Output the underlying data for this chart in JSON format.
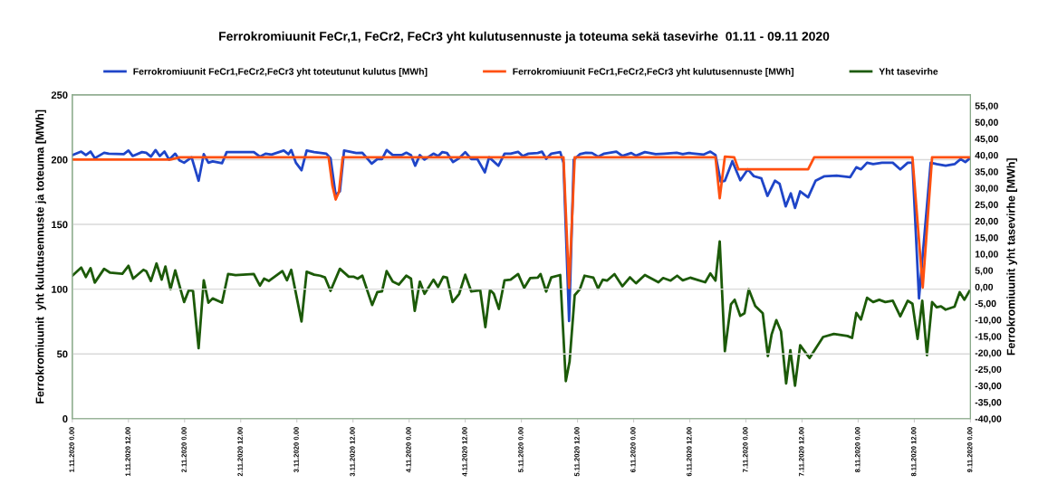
{
  "chart_data": {
    "type": "line",
    "title": "Ferrokromiuunit FeCr,1, FeCr2, FeCr3 yht kulutusennuste ja toteuma sekä tasevirhe  01.11 - 09.11 2020",
    "ylabel": "Ferrokromiuunit  yht kulutusennuste ja toteuma [MWh]",
    "y2label": "Ferrokromiuunit yht tasevirhe [MWh]",
    "xlim": [
      "2020-11-01T00:00",
      "2020-11-09T00:00"
    ],
    "xticks": [
      {
        "value": "2020-11-01T00:00",
        "label": "1.11.2020 0.00"
      },
      {
        "value": "2020-11-01T12:00",
        "label": "1.11.2020 12.00"
      },
      {
        "value": "2020-11-02T00:00",
        "label": "2.11.2020 0.00"
      },
      {
        "value": "2020-11-02T12:00",
        "label": "2.11.2020 12.00"
      },
      {
        "value": "2020-11-03T00:00",
        "label": "3.11.2020 0.00"
      },
      {
        "value": "2020-11-03T12:00",
        "label": "3.11.2020 12.00"
      },
      {
        "value": "2020-11-04T00:00",
        "label": "4.11.2020 0.00"
      },
      {
        "value": "2020-11-04T12:00",
        "label": "4.11.2020 12.00"
      },
      {
        "value": "2020-11-05T00:00",
        "label": "5.11.2020 0.00"
      },
      {
        "value": "2020-11-05T12:00",
        "label": "5.11.2020 12.00"
      },
      {
        "value": "2020-11-06T00:00",
        "label": "6.11.2020 0.00"
      },
      {
        "value": "2020-11-06T12:00",
        "label": "6.11.2020 12.00"
      },
      {
        "value": "2020-11-07T00:00",
        "label": "7.11.2020 0.00"
      },
      {
        "value": "2020-11-07T12:00",
        "label": "7.11.2020 12.00"
      },
      {
        "value": "2020-11-08T00:00",
        "label": "8.11.2020 0.00"
      },
      {
        "value": "2020-11-08T12:00",
        "label": "8.11.2020 12.00"
      },
      {
        "value": "2020-11-09T00:00",
        "label": "9.11.2020 0.00"
      }
    ],
    "ylim": [
      0,
      250
    ],
    "yticks": [
      0,
      50,
      100,
      150,
      200,
      250
    ],
    "y2lim": [
      -40,
      58.3
    ],
    "y2ticks": [
      {
        "value": -40,
        "label": "-40,00"
      },
      {
        "value": -35,
        "label": "-35,00"
      },
      {
        "value": -30,
        "label": "-30,00"
      },
      {
        "value": -25,
        "label": "-25,00"
      },
      {
        "value": -20,
        "label": "-20,00"
      },
      {
        "value": -15,
        "label": "-15,00"
      },
      {
        "value": -10,
        "label": "-10,00"
      },
      {
        "value": -5,
        "label": "-5,00"
      },
      {
        "value": 0,
        "label": "0,00"
      },
      {
        "value": 5,
        "label": "5,00"
      },
      {
        "value": 10,
        "label": "10,00"
      },
      {
        "value": 15,
        "label": "15,00"
      },
      {
        "value": 20,
        "label": "20,00"
      },
      {
        "value": 25,
        "label": "25,00"
      },
      {
        "value": 30,
        "label": "30,00"
      },
      {
        "value": 35,
        "label": "35,00"
      },
      {
        "value": 40,
        "label": "40,00"
      },
      {
        "value": 45,
        "label": "45,00"
      },
      {
        "value": 50,
        "label": "50,00"
      },
      {
        "value": 55,
        "label": "55,00"
      }
    ],
    "grid": "y",
    "legend": "top",
    "marker": "none",
    "line_style": "solid",
    "series": [
      {
        "name": "Ferrokromiuunit FeCr1,FeCr2,FeCr3 yht toteutunut kulutus [MWh]",
        "color": "#1f45c8",
        "x": [
          "2020-11-01T00:00",
          "2020-11-01T01:54",
          "2020-11-01T02:54",
          "2020-11-01T03:54",
          "2020-11-01T04:48",
          "2020-11-01T06:48",
          "2020-11-01T07:48",
          "2020-11-01T11:00",
          "2020-11-01T12:00",
          "2020-11-01T12:54",
          "2020-11-01T14:54",
          "2020-11-01T15:48",
          "2020-11-01T16:48",
          "2020-11-01T17:48",
          "2020-11-01T18:42",
          "2020-11-01T19:42",
          "2020-11-01T20:42",
          "2020-11-01T22:00",
          "2020-11-01T22:54",
          "2020-11-01T23:54",
          "2020-11-02T01:30",
          "2020-11-02T03:00",
          "2020-11-02T04:06",
          "2020-11-02T05:06",
          "2020-11-02T06:00",
          "2020-11-02T08:00",
          "2020-11-02T09:00",
          "2020-11-02T10:54",
          "2020-11-02T14:48",
          "2020-11-02T16:06",
          "2020-11-02T17:18",
          "2020-11-02T18:36",
          "2020-11-02T21:12",
          "2020-11-02T22:12",
          "2020-11-02T22:48",
          "2020-11-02T23:48",
          "2020-11-03T01:00",
          "2020-11-03T02:06",
          "2020-11-03T03:42",
          "2020-11-03T06:18",
          "2020-11-03T07:12",
          "2020-11-03T08:18",
          "2020-11-03T09:12",
          "2020-11-03T10:06",
          "2020-11-03T12:42",
          "2020-11-03T14:00",
          "2020-11-03T16:00",
          "2020-11-03T17:12",
          "2020-11-03T18:12",
          "2020-11-03T19:12",
          "2020-11-03T20:30",
          "2020-11-03T22:24",
          "2020-11-03T23:24",
          "2020-11-04T00:24",
          "2020-11-04T01:18",
          "2020-11-04T02:18",
          "2020-11-04T03:18",
          "2020-11-04T05:12",
          "2020-11-04T06:12",
          "2020-11-04T07:06",
          "2020-11-04T08:06",
          "2020-11-04T09:24",
          "2020-11-04T10:42",
          "2020-11-04T12:00",
          "2020-11-04T13:18",
          "2020-11-04T14:36",
          "2020-11-04T16:12",
          "2020-11-04T17:06",
          "2020-11-04T19:06",
          "2020-11-04T20:24",
          "2020-11-04T21:42",
          "2020-11-04T23:18",
          "2020-11-05T00:18",
          "2020-11-05T01:30",
          "2020-11-05T03:30",
          "2020-11-05T04:24",
          "2020-11-05T05:18",
          "2020-11-05T06:24",
          "2020-11-05T08:18",
          "2020-11-05T09:00",
          "2020-11-05T10:12",
          "2020-11-05T11:12",
          "2020-11-05T12:30",
          "2020-11-05T13:48",
          "2020-11-05T15:06",
          "2020-11-05T16:24",
          "2020-11-05T17:42",
          "2020-11-05T20:18",
          "2020-11-05T21:36",
          "2020-11-05T23:30",
          "2020-11-06T00:30",
          "2020-11-06T02:24",
          "2020-11-06T04:42",
          "2020-11-06T06:36",
          "2020-11-06T09:12",
          "2020-11-06T10:30",
          "2020-11-06T11:48",
          "2020-11-06T15:00",
          "2020-11-06T16:24",
          "2020-11-06T17:30",
          "2020-11-06T18:36",
          "2020-11-06T19:30",
          "2020-11-06T21:06",
          "2020-11-06T22:48",
          "2020-11-07T00:24",
          "2020-11-07T01:42",
          "2020-11-07T03:18",
          "2020-11-07T04:36",
          "2020-11-07T06:12",
          "2020-11-07T07:12",
          "2020-11-07T08:30",
          "2020-11-07T09:36",
          "2020-11-07T10:30",
          "2020-11-07T11:36",
          "2020-11-07T13:18",
          "2020-11-07T14:54",
          "2020-11-07T16:48",
          "2020-11-07T19:24",
          "2020-11-07T22:18",
          "2020-11-07T23:36",
          "2020-11-08T00:36",
          "2020-11-08T01:54",
          "2020-11-08T03:12",
          "2020-11-08T05:06",
          "2020-11-08T07:24",
          "2020-11-08T09:00",
          "2020-11-08T10:36",
          "2020-11-08T11:36",
          "2020-11-08T13:00",
          "2020-11-08T15:30",
          "2020-11-08T16:48",
          "2020-11-08T18:42",
          "2020-11-08T20:36",
          "2020-11-08T21:54",
          "2020-11-08T22:54",
          "2020-11-08T23:54"
        ],
        "values": [
          203.5,
          206.2,
          203.5,
          206.2,
          201.1,
          205.3,
          204.6,
          204.2,
          207.0,
          202.8,
          205.8,
          205.3,
          202.3,
          207.4,
          202.8,
          206.2,
          200.0,
          204.6,
          199.5,
          197.6,
          201.8,
          183.7,
          204.2,
          197.6,
          198.6,
          197.2,
          205.8,
          205.8,
          205.8,
          202.3,
          204.6,
          203.9,
          207.0,
          204.2,
          207.4,
          197.6,
          191.8,
          207.0,
          205.8,
          204.6,
          201.1,
          172.5,
          175.5,
          207.0,
          205.1,
          205.3,
          196.9,
          200.4,
          200.4,
          207.4,
          203.5,
          203.5,
          205.3,
          203.5,
          195.3,
          203.5,
          200.0,
          204.6,
          202.8,
          205.8,
          205.1,
          198.1,
          201.1,
          205.8,
          200.4,
          200.4,
          190.2,
          201.8,
          195.3,
          204.6,
          204.6,
          206.0,
          202.8,
          204.6,
          205.1,
          206.2,
          200.7,
          204.6,
          205.8,
          197.6,
          75.4,
          200.0,
          204.2,
          205.3,
          205.1,
          202.3,
          204.6,
          206.2,
          202.8,
          205.1,
          203.0,
          205.8,
          204.2,
          204.6,
          205.3,
          204.2,
          205.1,
          203.9,
          206.2,
          203.5,
          183.0,
          183.7,
          198.8,
          184.1,
          192.5,
          187.2,
          185.5,
          172.0,
          183.7,
          181.3,
          163.9,
          173.9,
          162.7,
          175.5,
          170.9,
          183.7,
          187.2,
          187.6,
          186.5,
          194.1,
          192.5,
          197.6,
          196.5,
          197.6,
          197.6,
          192.5,
          197.6,
          197.6,
          92.9,
          197.6,
          196.5,
          195.3,
          196.5,
          200.4,
          198.1,
          201.1
        ]
      },
      {
        "name": "Ferrokromiuunit FeCr1,FeCr2,FeCr3 yht kulutusennuste [MWh]",
        "color": "#ff5010",
        "x": [
          "2020-11-01T00:00",
          "2020-11-01T21:00",
          "2020-11-01T22:54",
          "2020-11-03T06:48",
          "2020-11-03T07:36",
          "2020-11-03T08:18",
          "2020-11-03T09:00",
          "2020-11-03T09:48",
          "2020-11-05T09:00",
          "2020-11-05T10:12",
          "2020-11-05T11:24",
          "2020-11-06T17:30",
          "2020-11-06T18:24",
          "2020-11-06T19:30",
          "2020-11-06T21:30",
          "2020-11-06T22:24",
          "2020-11-07T13:18",
          "2020-11-07T14:36",
          "2020-11-08T11:36",
          "2020-11-08T13:48",
          "2020-11-08T15:48",
          "2020-11-08T23:54"
        ],
        "values": [
          200.0,
          200.0,
          201.8,
          201.8,
          180.0,
          169.2,
          175.0,
          201.8,
          201.8,
          101.0,
          201.8,
          201.8,
          170.2,
          202.3,
          201.8,
          192.5,
          192.5,
          201.8,
          201.8,
          101.3,
          201.8,
          201.8
        ]
      },
      {
        "name": "Yht tasevirhe",
        "color": "#1c5a08",
        "axis": "y2",
        "x": [
          "2020-11-01T00:00",
          "2020-11-01T01:54",
          "2020-11-01T02:54",
          "2020-11-01T03:54",
          "2020-11-01T04:48",
          "2020-11-01T06:48",
          "2020-11-01T08:06",
          "2020-11-01T10:42",
          "2020-11-01T12:00",
          "2020-11-01T13:00",
          "2020-11-01T15:12",
          "2020-11-01T15:48",
          "2020-11-01T16:48",
          "2020-11-01T18:00",
          "2020-11-01T19:06",
          "2020-11-01T19:54",
          "2020-11-01T21:00",
          "2020-11-01T22:00",
          "2020-11-01T23:54",
          "2020-11-02T00:54",
          "2020-11-02T01:48",
          "2020-11-02T03:00",
          "2020-11-02T04:06",
          "2020-11-02T05:06",
          "2020-11-02T06:00",
          "2020-11-02T08:00",
          "2020-11-02T09:18",
          "2020-11-02T10:54",
          "2020-11-02T14:48",
          "2020-11-02T16:06",
          "2020-11-02T17:00",
          "2020-11-02T18:00",
          "2020-11-02T20:54",
          "2020-11-02T21:54",
          "2020-11-02T22:48",
          "2020-11-03T01:00",
          "2020-11-03T02:06",
          "2020-11-03T03:42",
          "2020-11-03T05:00",
          "2020-11-03T06:00",
          "2020-11-03T07:12",
          "2020-11-03T09:12",
          "2020-11-03T11:06",
          "2020-11-03T12:06",
          "2020-11-03T13:00",
          "2020-11-03T14:00",
          "2020-11-03T16:06",
          "2020-11-03T17:12",
          "2020-11-03T18:12",
          "2020-11-03T19:12",
          "2020-11-03T20:30",
          "2020-11-03T21:48",
          "2020-11-03T23:24",
          "2020-11-04T00:24",
          "2020-11-04T01:12",
          "2020-11-04T02:18",
          "2020-11-04T03:18",
          "2020-11-04T05:12",
          "2020-11-04T06:12",
          "2020-11-04T07:18",
          "2020-11-04T08:06",
          "2020-11-04T09:18",
          "2020-11-04T10:42",
          "2020-11-04T12:00",
          "2020-11-04T13:18",
          "2020-11-04T15:12",
          "2020-11-04T16:18",
          "2020-11-04T17:18",
          "2020-11-04T18:06",
          "2020-11-04T19:12",
          "2020-11-04T20:24",
          "2020-11-04T21:42",
          "2020-11-04T23:18",
          "2020-11-05T00:36",
          "2020-11-05T01:54",
          "2020-11-05T03:30",
          "2020-11-05T04:06",
          "2020-11-05T05:18",
          "2020-11-05T06:24",
          "2020-11-05T08:18",
          "2020-11-05T09:30",
          "2020-11-05T10:18",
          "2020-11-05T11:24",
          "2020-11-05T12:30",
          "2020-11-05T13:30",
          "2020-11-05T15:24",
          "2020-11-05T16:24",
          "2020-11-05T17:24",
          "2020-11-05T18:18",
          "2020-11-05T19:54",
          "2020-11-05T21:36",
          "2020-11-05T23:12",
          "2020-11-06T00:30",
          "2020-11-06T02:24",
          "2020-11-06T05:18",
          "2020-11-06T06:18",
          "2020-11-06T07:54",
          "2020-11-06T09:18",
          "2020-11-06T10:30",
          "2020-11-06T12:06",
          "2020-11-06T15:18",
          "2020-11-06T16:24",
          "2020-11-06T17:30",
          "2020-11-06T18:24",
          "2020-11-06T19:30",
          "2020-11-06T20:48",
          "2020-11-06T21:36",
          "2020-11-06T22:48",
          "2020-11-06T23:42",
          "2020-11-07T00:36",
          "2020-11-07T02:00",
          "2020-11-07T03:36",
          "2020-11-07T04:42",
          "2020-11-07T05:30",
          "2020-11-07T06:30",
          "2020-11-07T07:30",
          "2020-11-07T08:36",
          "2020-11-07T09:30",
          "2020-11-07T10:30",
          "2020-11-07T11:36",
          "2020-11-07T13:36",
          "2020-11-07T16:30",
          "2020-11-07T18:48",
          "2020-11-07T21:42",
          "2020-11-07T22:42",
          "2020-11-07T23:36",
          "2020-11-08T00:36",
          "2020-11-08T01:54",
          "2020-11-08T03:12",
          "2020-11-08T04:30",
          "2020-11-08T05:48",
          "2020-11-08T07:24",
          "2020-11-08T09:00",
          "2020-11-08T10:36",
          "2020-11-08T11:36",
          "2020-11-08T12:42",
          "2020-11-08T13:42",
          "2020-11-08T14:42",
          "2020-11-08T15:48",
          "2020-11-08T16:48",
          "2020-11-08T17:42",
          "2020-11-08T18:42",
          "2020-11-08T20:36",
          "2020-11-08T21:42",
          "2020-11-08T22:42",
          "2020-11-08T23:54"
        ],
        "values": [
          3.4,
          5.9,
          3.0,
          5.7,
          1.3,
          5.5,
          4.3,
          4.0,
          6.4,
          2.5,
          5.2,
          4.8,
          1.8,
          7.1,
          2.2,
          6.2,
          -0.7,
          5.0,
          -4.6,
          -1.0,
          -1.2,
          -18.6,
          2.0,
          -4.8,
          -3.5,
          -4.8,
          3.9,
          3.6,
          3.9,
          0.4,
          2.5,
          1.8,
          4.8,
          2.0,
          5.2,
          -10.5,
          4.6,
          3.7,
          3.4,
          2.9,
          -1.2,
          5.5,
          3.1,
          3.1,
          2.5,
          3.4,
          -5.5,
          -1.6,
          -1.4,
          4.8,
          1.6,
          0.7,
          3.4,
          2.5,
          -7.3,
          1.6,
          -2.1,
          2.2,
          0.0,
          3.1,
          2.8,
          -4.6,
          -2.1,
          3.7,
          -1.4,
          -1.0,
          -12.2,
          -0.9,
          -2.1,
          -6.7,
          2.0,
          2.2,
          3.9,
          -0.3,
          2.7,
          2.8,
          3.9,
          -1.4,
          2.9,
          3.6,
          -28.6,
          -22.7,
          -2.5,
          -0.7,
          3.4,
          2.8,
          -0.5,
          2.2,
          1.9,
          3.9,
          0.2,
          2.9,
          1.1,
          3.6,
          1.4,
          2.7,
          1.9,
          3.4,
          2.0,
          2.8,
          1.4,
          4.1,
          1.9,
          13.8,
          -19.5,
          -5.3,
          -3.9,
          -8.8,
          -8.0,
          -0.7,
          -5.8,
          -8.0,
          -21.0,
          -14.4,
          -10.1,
          -13.5,
          -29.3,
          -19.2,
          -30.0,
          -17.7,
          -21.6,
          -15.2,
          -14.3,
          -14.9,
          -15.5,
          -7.9,
          -9.9,
          -3.3,
          -4.6,
          -3.9,
          -4.6,
          -4.2,
          -8.9,
          -4.2,
          -5.1,
          -15.8,
          -4.2,
          -20.7,
          -4.6,
          -6.2,
          -5.9,
          -6.9,
          -6.0,
          -1.6,
          -3.9,
          -1.0
        ]
      }
    ]
  }
}
